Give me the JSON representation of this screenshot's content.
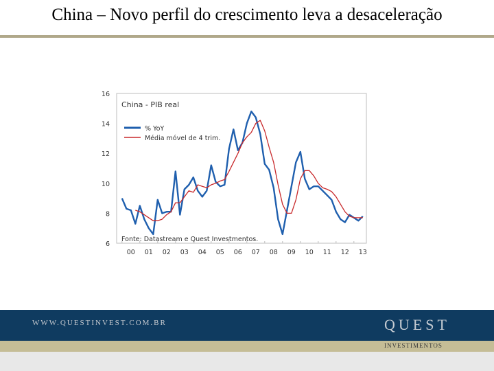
{
  "title": "China – Novo perfil do crescimento leva a desaceleração",
  "footer": {
    "website": "WWW.QUESTINVEST.COM.BR",
    "logo": "QUEST",
    "logo_sub": "INVESTIMENTOS"
  },
  "colors": {
    "title_rule": "#b0a88a",
    "footer_bar": "#0f3b60",
    "footer_gold": "#c5bd96"
  },
  "chart_data": {
    "type": "line",
    "title": "China - PIB real",
    "source": "Fonte: Datastream e Quest Investmentos.",
    "ylim": [
      6,
      16
    ],
    "yticks": [
      6,
      8,
      10,
      12,
      14,
      16
    ],
    "xlim": [
      1999.7,
      2013.7
    ],
    "xticks": [
      "00",
      "01",
      "02",
      "03",
      "04",
      "05",
      "06",
      "07",
      "08",
      "09",
      "10",
      "11",
      "12",
      "13"
    ],
    "legend_position": "top-left",
    "grid": false,
    "series": [
      {
        "name": "% YoY",
        "color": "#1f5fae",
        "x": [
          2000.0,
          2000.25,
          2000.5,
          2000.75,
          2001.0,
          2001.25,
          2001.5,
          2001.75,
          2002.0,
          2002.25,
          2002.5,
          2002.75,
          2003.0,
          2003.25,
          2003.5,
          2003.75,
          2004.0,
          2004.25,
          2004.5,
          2004.75,
          2005.0,
          2005.25,
          2005.5,
          2005.75,
          2006.0,
          2006.25,
          2006.5,
          2006.75,
          2007.0,
          2007.25,
          2007.5,
          2007.75,
          2008.0,
          2008.25,
          2008.5,
          2008.75,
          2009.0,
          2009.25,
          2009.5,
          2009.75,
          2010.0,
          2010.25,
          2010.5,
          2010.75,
          2011.0,
          2011.25,
          2011.5,
          2011.75,
          2012.0,
          2012.25,
          2012.5,
          2012.75,
          2013.0,
          2013.25,
          2013.5
        ],
        "values": [
          9.0,
          8.3,
          8.2,
          7.3,
          8.5,
          7.6,
          7.0,
          6.6,
          8.9,
          8.0,
          8.1,
          8.1,
          10.8,
          7.9,
          9.6,
          9.9,
          10.4,
          9.5,
          9.1,
          9.5,
          11.2,
          10.1,
          9.8,
          9.9,
          12.3,
          13.6,
          12.2,
          12.7,
          14.0,
          14.8,
          14.4,
          13.3,
          11.3,
          10.9,
          9.7,
          7.6,
          6.6,
          8.2,
          9.8,
          11.4,
          12.1,
          10.3,
          9.6,
          9.8,
          9.8,
          9.5,
          9.2,
          8.9,
          8.1,
          7.6,
          7.4,
          7.9,
          7.7,
          7.5,
          7.8
        ]
      },
      {
        "name": "Média móvel de 4 trim.",
        "color": "#c8292b",
        "x": [
          2000.75,
          2001.0,
          2001.25,
          2001.5,
          2001.75,
          2002.0,
          2002.25,
          2002.5,
          2002.75,
          2003.0,
          2003.25,
          2003.5,
          2003.75,
          2004.0,
          2004.25,
          2004.5,
          2004.75,
          2005.0,
          2005.25,
          2005.5,
          2005.75,
          2006.0,
          2006.25,
          2006.5,
          2006.75,
          2007.0,
          2007.25,
          2007.5,
          2007.75,
          2008.0,
          2008.25,
          2008.5,
          2008.75,
          2009.0,
          2009.25,
          2009.5,
          2009.75,
          2010.0,
          2010.25,
          2010.5,
          2010.75,
          2011.0,
          2011.25,
          2011.5,
          2011.75,
          2012.0,
          2012.25,
          2012.5,
          2012.75,
          2013.0,
          2013.25,
          2013.5
        ],
        "values": [
          8.2,
          8.1,
          7.9,
          7.7,
          7.5,
          7.5,
          7.6,
          7.9,
          8.1,
          8.7,
          8.7,
          9.1,
          9.5,
          9.4,
          9.9,
          9.8,
          9.7,
          9.9,
          10.0,
          10.15,
          10.25,
          10.8,
          11.4,
          12.0,
          12.7,
          13.1,
          13.4,
          14.0,
          14.2,
          13.5,
          12.4,
          11.4,
          9.9,
          8.6,
          8.0,
          8.0,
          8.9,
          10.3,
          10.85,
          10.85,
          10.5,
          10.0,
          9.7,
          9.6,
          9.45,
          9.1,
          8.6,
          8.1,
          7.8,
          7.7,
          7.7,
          7.7
        ]
      }
    ]
  }
}
